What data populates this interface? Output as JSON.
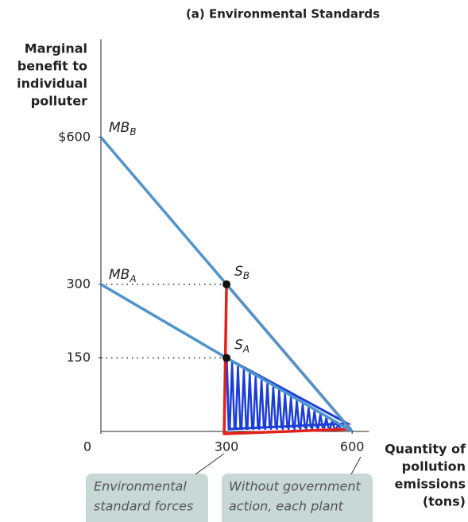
{
  "chart_data": {
    "type": "line",
    "title": "(a) Environmental Standards",
    "ylabel": [
      "Marginal",
      "benefit to",
      "individual",
      "polluter"
    ],
    "xlabel": [
      "Quantity of",
      "pollution",
      "emissions",
      "(tons)"
    ],
    "xlim": [
      0,
      640
    ],
    "ylim": [
      0,
      800
    ],
    "xticks": [
      0,
      300,
      600
    ],
    "yticks": [
      {
        "value": 600,
        "label": "$600"
      },
      300,
      150
    ],
    "series": [
      {
        "label": "MB",
        "subscript": "B",
        "color": "#4f93cc",
        "x": [
          0,
          600
        ],
        "values": [
          600,
          0
        ]
      },
      {
        "label": "MB",
        "subscript": "A",
        "color": "#4f93cc",
        "x": [
          0,
          600
        ],
        "values": [
          300,
          0
        ]
      }
    ],
    "points": [
      {
        "label": "S",
        "subscript": "B",
        "x": 300,
        "y": 300
      },
      {
        "label": "S",
        "subscript": "A",
        "x": 300,
        "y": 150
      }
    ],
    "annotations": [
      {
        "lines": [
          "Environmental",
          "standard forces"
        ]
      },
      {
        "lines": [
          "Without government",
          "action, each plant"
        ]
      }
    ]
  }
}
